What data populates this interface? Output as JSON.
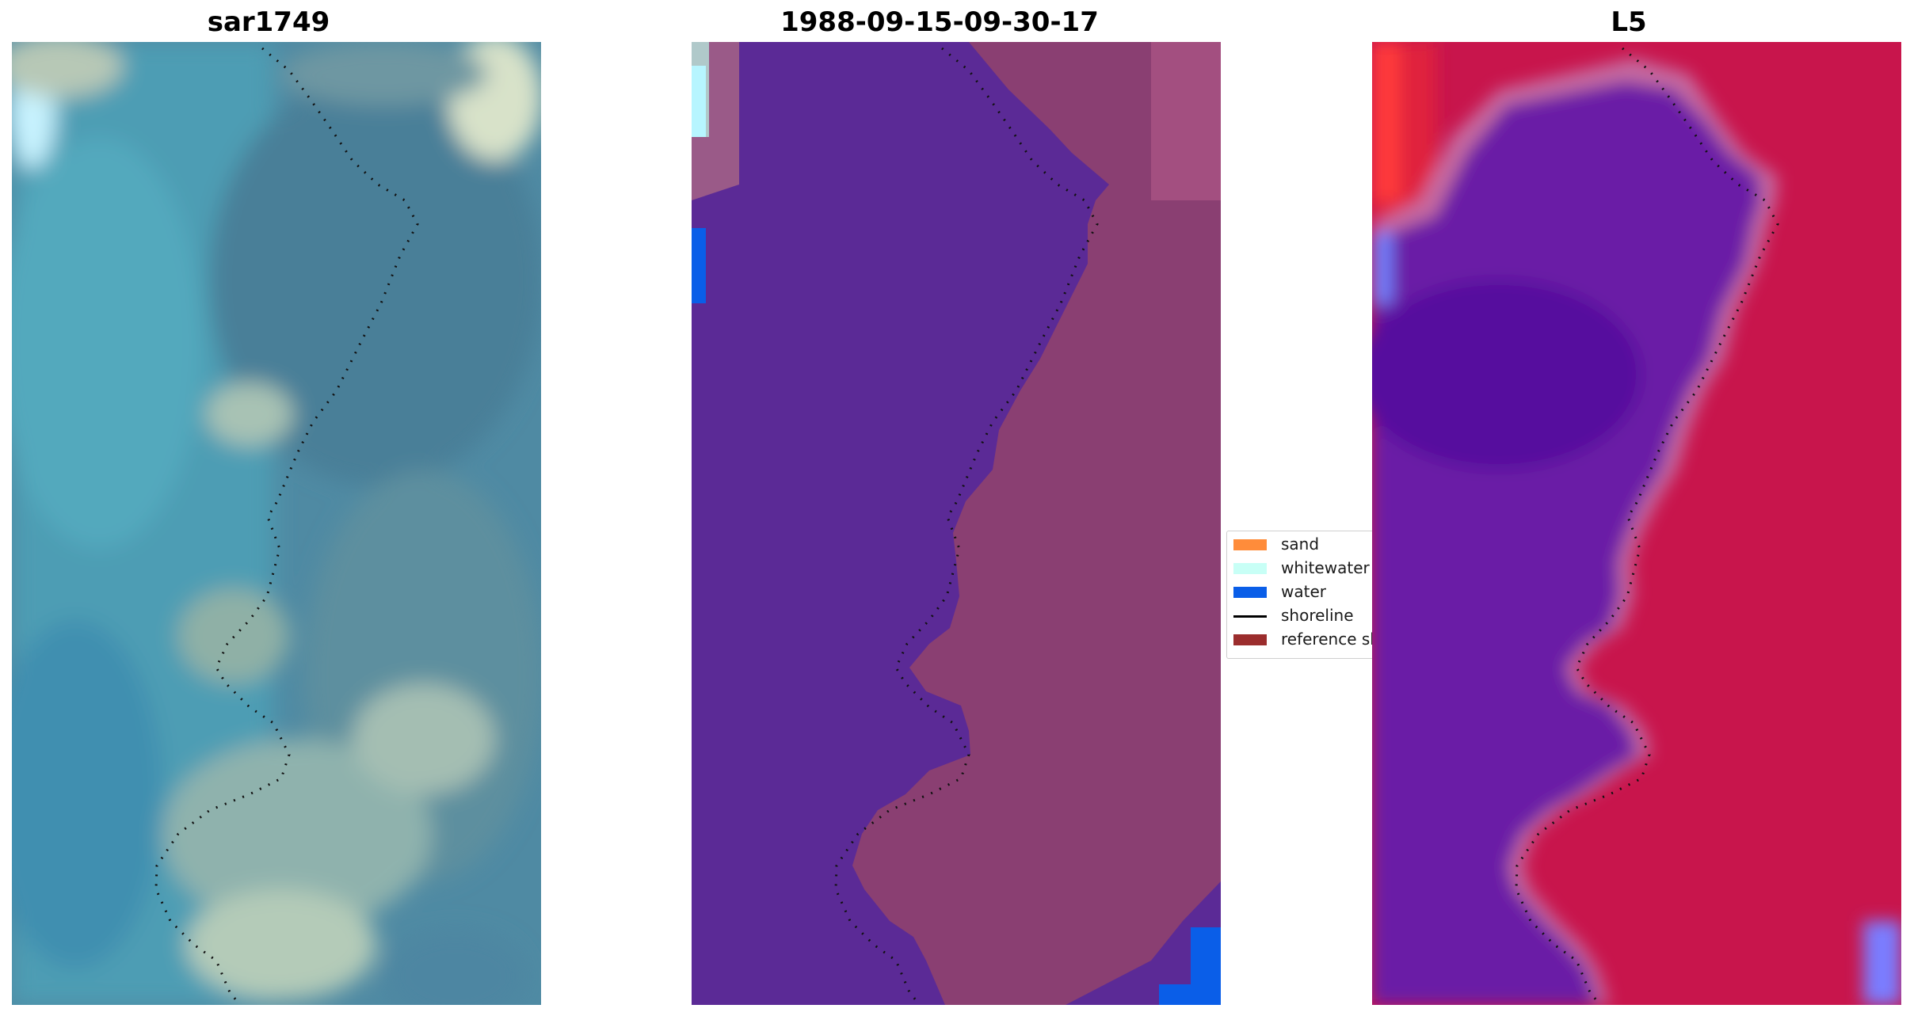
{
  "panels": [
    {
      "title": "sar1749",
      "kind": "rgb"
    },
    {
      "title": "1988-09-15-09-30-17",
      "kind": "classified"
    },
    {
      "title": "L5",
      "kind": "probability"
    }
  ],
  "legend": {
    "items": [
      {
        "label": "sand",
        "color": "#ff8c3a"
      },
      {
        "label": "whitewater",
        "color": "#c8fff6"
      },
      {
        "label": "water",
        "color": "#0a5ee8"
      },
      {
        "label": "shoreline",
        "color": "#000000"
      },
      {
        "label": "reference shoreline buffer",
        "color": "#9b2d2d"
      }
    ]
  },
  "colors": {
    "classified_water": "#5b2a96",
    "classified_land": "#8a3f72",
    "probability_water": "#6a1ba6",
    "probability_land": "#c8154c"
  }
}
